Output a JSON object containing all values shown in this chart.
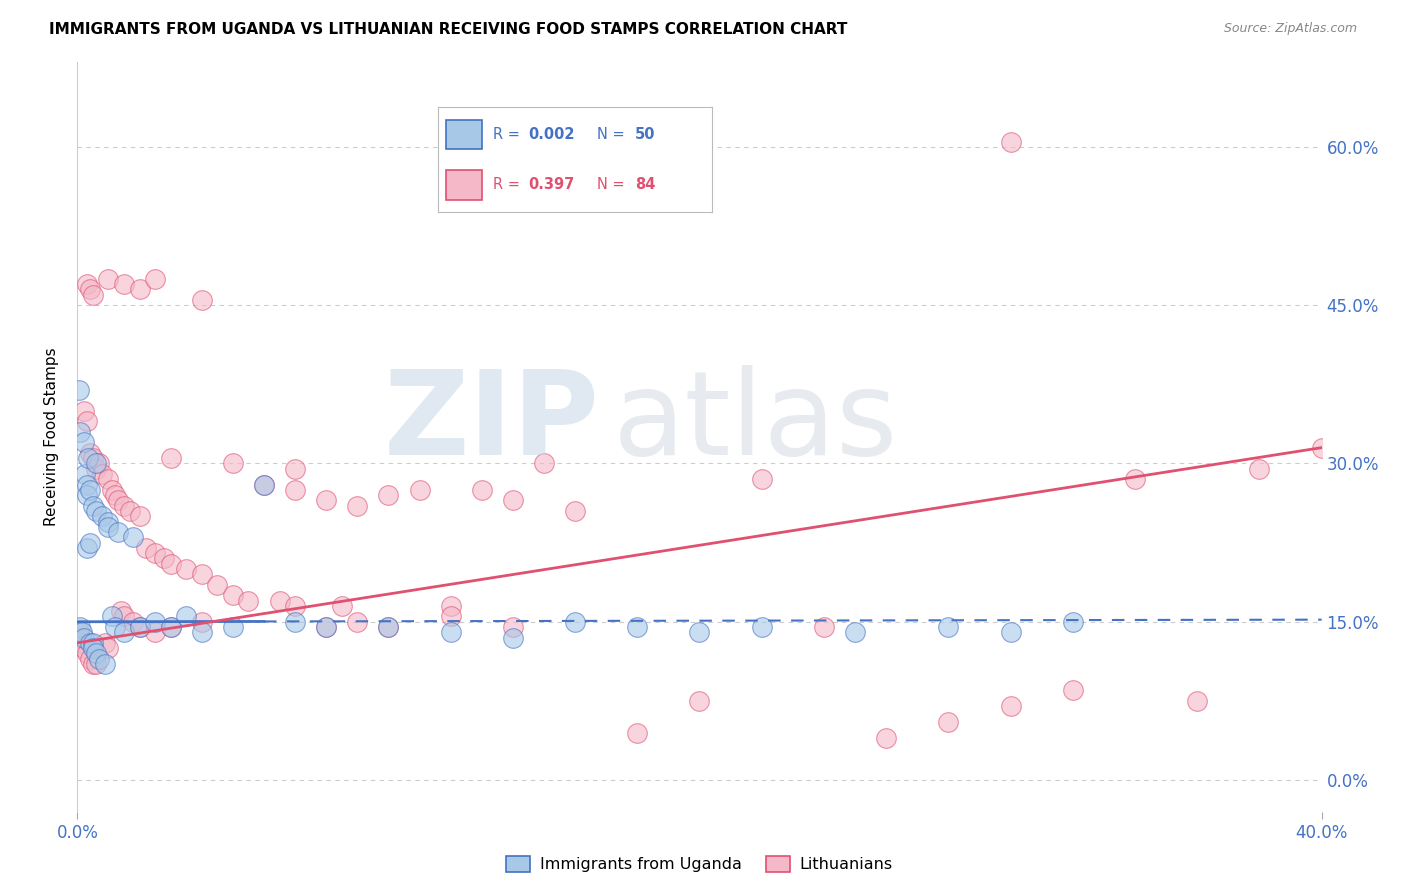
{
  "title": "IMMIGRANTS FROM UGANDA VS LITHUANIAN RECEIVING FOOD STAMPS CORRELATION CHART",
  "source": "Source: ZipAtlas.com",
  "ylabel": "Receiving Food Stamps",
  "xlim": [
    0.0,
    40.0
  ],
  "ylim": [
    -3.0,
    68.0
  ],
  "yticks": [
    0.0,
    15.0,
    30.0,
    45.0,
    60.0
  ],
  "color_uganda": "#a8c8e8",
  "color_lithuania": "#f4b8c8",
  "color_uganda_line": "#4472c4",
  "color_lithuania_line": "#e05070",
  "background": "#ffffff",
  "uganda_x": [
    0.05,
    0.1,
    0.1,
    0.15,
    0.2,
    0.2,
    0.25,
    0.3,
    0.3,
    0.35,
    0.4,
    0.4,
    0.5,
    0.5,
    0.5,
    0.6,
    0.6,
    0.7,
    0.8,
    0.9,
    1.0,
    1.0,
    1.1,
    1.2,
    1.3,
    1.5,
    1.8,
    2.0,
    2.5,
    3.0,
    3.5,
    4.0,
    5.0,
    6.0,
    7.0,
    8.0,
    10.0,
    12.0,
    14.0,
    16.0,
    18.0,
    20.0,
    22.0,
    25.0,
    28.0,
    30.0,
    32.0,
    0.3,
    0.4,
    0.6
  ],
  "uganda_y": [
    37.0,
    33.0,
    14.5,
    14.0,
    13.5,
    32.0,
    29.0,
    28.0,
    27.0,
    30.5,
    27.5,
    13.0,
    26.0,
    13.0,
    12.5,
    25.5,
    12.0,
    11.5,
    25.0,
    11.0,
    24.5,
    24.0,
    15.5,
    14.5,
    23.5,
    14.0,
    23.0,
    14.5,
    15.0,
    14.5,
    15.5,
    14.0,
    14.5,
    28.0,
    15.0,
    14.5,
    14.5,
    14.0,
    13.5,
    15.0,
    14.5,
    14.0,
    14.5,
    14.0,
    14.5,
    14.0,
    15.0,
    22.0,
    22.5,
    30.0
  ],
  "lithuania_x": [
    0.05,
    0.1,
    0.15,
    0.2,
    0.2,
    0.3,
    0.3,
    0.4,
    0.4,
    0.5,
    0.5,
    0.6,
    0.6,
    0.7,
    0.8,
    0.9,
    1.0,
    1.0,
    1.1,
    1.2,
    1.3,
    1.4,
    1.5,
    1.5,
    1.7,
    1.8,
    2.0,
    2.0,
    2.2,
    2.5,
    2.5,
    2.8,
    3.0,
    3.0,
    3.5,
    4.0,
    4.0,
    4.5,
    5.0,
    5.5,
    6.0,
    6.5,
    7.0,
    7.0,
    8.0,
    8.5,
    9.0,
    10.0,
    11.0,
    12.0,
    13.0,
    14.0,
    15.0,
    16.0,
    18.0,
    20.0,
    22.0,
    24.0,
    26.0,
    28.0,
    30.0,
    32.0,
    34.0,
    36.0,
    38.0,
    40.0,
    0.3,
    0.4,
    0.5,
    1.0,
    1.5,
    2.0,
    2.5,
    3.0,
    4.0,
    5.0,
    7.0,
    8.0,
    9.0,
    10.0,
    12.0,
    14.0,
    30.0
  ],
  "lithuania_y": [
    14.0,
    13.5,
    13.0,
    12.5,
    35.0,
    34.0,
    12.0,
    31.0,
    11.5,
    11.0,
    30.5,
    29.5,
    11.0,
    30.0,
    29.0,
    13.0,
    12.5,
    28.5,
    27.5,
    27.0,
    26.5,
    16.0,
    26.0,
    15.5,
    25.5,
    15.0,
    25.0,
    14.5,
    22.0,
    21.5,
    14.0,
    21.0,
    20.5,
    14.5,
    20.0,
    19.5,
    15.0,
    18.5,
    17.5,
    17.0,
    28.0,
    17.0,
    16.5,
    27.5,
    26.5,
    16.5,
    26.0,
    27.0,
    27.5,
    16.5,
    27.5,
    26.5,
    30.0,
    25.5,
    4.5,
    7.5,
    28.5,
    14.5,
    4.0,
    5.5,
    7.0,
    8.5,
    28.5,
    7.5,
    29.5,
    31.5,
    47.0,
    46.5,
    46.0,
    47.5,
    47.0,
    46.5,
    47.5,
    30.5,
    45.5,
    30.0,
    29.5,
    14.5,
    15.0,
    14.5,
    15.5,
    14.5,
    60.5
  ],
  "uganda_line_y0": 15.0,
  "uganda_line_y1": 15.2,
  "lithuania_line_y0": 13.0,
  "lithuania_line_y1": 31.5
}
